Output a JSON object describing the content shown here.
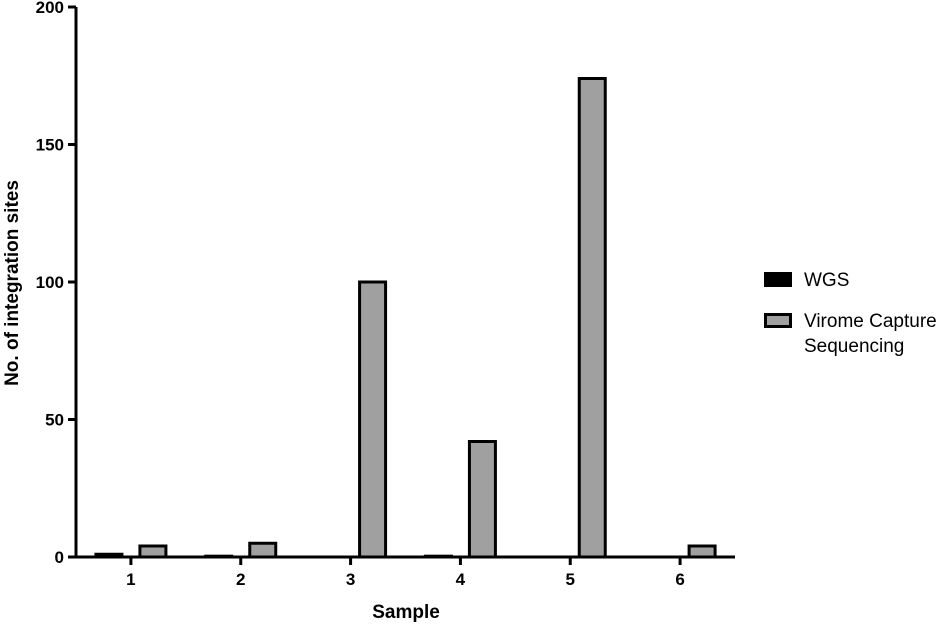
{
  "chart_data": {
    "type": "bar",
    "xlabel": "Sample",
    "ylabel": "No. of integration sites",
    "categories": [
      "1",
      "2",
      "3",
      "4",
      "5",
      "6"
    ],
    "ylim": [
      0,
      200
    ],
    "yticks": [
      "0",
      "50",
      "100",
      "150",
      "200"
    ],
    "series": [
      {
        "name": "WGS",
        "color": "#000000",
        "values": [
          1,
          0.3,
          0,
          0.3,
          0,
          0
        ]
      },
      {
        "name": "Virome Capture Sequencing",
        "color": "#a0a0a0",
        "values": [
          4,
          5,
          100,
          42,
          174,
          4
        ]
      }
    ],
    "legend_position": "right",
    "grid": false
  }
}
